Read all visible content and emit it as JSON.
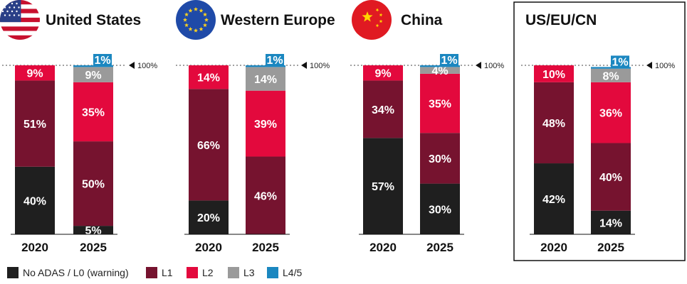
{
  "colors": {
    "no_adas": "#1f1f1f",
    "l1": "#76132f",
    "l2": "#e3093d",
    "l3": "#9a9a9a",
    "l45": "#1b87c0",
    "usa_red": "#c8102e",
    "usa_blue": "#2a3f87",
    "eu_blue": "#1f4aa8",
    "eu_star": "#ffd21f",
    "cn_red": "#e01a22",
    "cn_star": "#ffd500"
  },
  "chart_data": {
    "type": "bar",
    "stacked": true,
    "reference_line": {
      "value": 100,
      "label": "100%"
    },
    "series_names": [
      "No ADAS / L0 (warning)",
      "L1",
      "L2",
      "L3",
      "L4/5"
    ],
    "panels": [
      {
        "title": "United States",
        "flag": "usa-flag-icon",
        "boxed": false,
        "years": [
          {
            "label": "2020",
            "values": [
              40,
              51,
              9,
              0,
              0
            ],
            "labels": [
              "40%",
              "51%",
              "9%",
              "",
              ""
            ]
          },
          {
            "label": "2025",
            "values": [
              5,
              50,
              35,
              9,
              1
            ],
            "labels": [
              "5%",
              "50%",
              "35%",
              "9%",
              "1%"
            ]
          }
        ]
      },
      {
        "title": "Western Europe",
        "flag": "eu-flag-icon",
        "boxed": false,
        "years": [
          {
            "label": "2020",
            "values": [
              20,
              66,
              14,
              0,
              0
            ],
            "labels": [
              "20%",
              "66%",
              "14%",
              "",
              ""
            ]
          },
          {
            "label": "2025",
            "values": [
              0,
              46,
              39,
              14,
              1
            ],
            "labels": [
              "",
              "46%",
              "39%",
              "14%",
              "1%"
            ]
          }
        ]
      },
      {
        "title": "China",
        "flag": "china-flag-icon",
        "boxed": false,
        "years": [
          {
            "label": "2020",
            "values": [
              57,
              34,
              9,
              0,
              0
            ],
            "labels": [
              "57%",
              "34%",
              "9%",
              "",
              ""
            ]
          },
          {
            "label": "2025",
            "values": [
              30,
              30,
              35,
              4,
              1
            ],
            "labels": [
              "30%",
              "30%",
              "35%",
              "4%",
              "1%"
            ]
          }
        ]
      },
      {
        "title": "US/EU/CN",
        "flag": "",
        "boxed": true,
        "years": [
          {
            "label": "2020",
            "values": [
              42,
              48,
              10,
              0,
              0
            ],
            "labels": [
              "42%",
              "48%",
              "10%",
              "",
              ""
            ]
          },
          {
            "label": "2025",
            "values": [
              14,
              40,
              36,
              8,
              1
            ],
            "labels": [
              "14%",
              "40%",
              "36%",
              "8%",
              "1%"
            ]
          }
        ]
      }
    ],
    "legend": [
      {
        "label": "No ADAS / L0 (warning)",
        "color_key": "no_adas"
      },
      {
        "label": "L1",
        "color_key": "l1"
      },
      {
        "label": "L2",
        "color_key": "l2"
      },
      {
        "label": "L3",
        "color_key": "l3"
      },
      {
        "label": "L4/5",
        "color_key": "l45"
      }
    ]
  }
}
